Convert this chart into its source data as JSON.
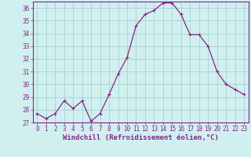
{
  "x": [
    0,
    1,
    2,
    3,
    4,
    5,
    6,
    7,
    8,
    9,
    10,
    11,
    12,
    13,
    14,
    15,
    16,
    17,
    18,
    19,
    20,
    21,
    22,
    23
  ],
  "y": [
    27.7,
    27.3,
    27.7,
    28.7,
    28.1,
    28.7,
    27.1,
    27.7,
    29.2,
    30.8,
    32.1,
    34.6,
    35.5,
    35.8,
    36.4,
    36.4,
    35.5,
    33.9,
    33.9,
    33.0,
    31.0,
    30.0,
    29.6,
    29.2
  ],
  "line_color": "#882288",
  "marker": "+",
  "marker_color": "#882288",
  "bg_color": "#d0f0f0",
  "grid_color": "#a0c8c8",
  "xlabel": "Windchill (Refroidissement éolien,°C)",
  "xlabel_color": "#882288",
  "xlabel_fontsize": 6.5,
  "ylim": [
    27,
    36.5
  ],
  "yticks": [
    27,
    28,
    29,
    30,
    31,
    32,
    33,
    34,
    35,
    36
  ],
  "xticks": [
    0,
    1,
    2,
    3,
    4,
    5,
    6,
    7,
    8,
    9,
    10,
    11,
    12,
    13,
    14,
    15,
    16,
    17,
    18,
    19,
    20,
    21,
    22,
    23
  ],
  "tick_color": "#882288",
  "tick_fontsize": 5.5,
  "spine_color": "#882288",
  "linewidth": 0.9,
  "markersize": 3.5
}
